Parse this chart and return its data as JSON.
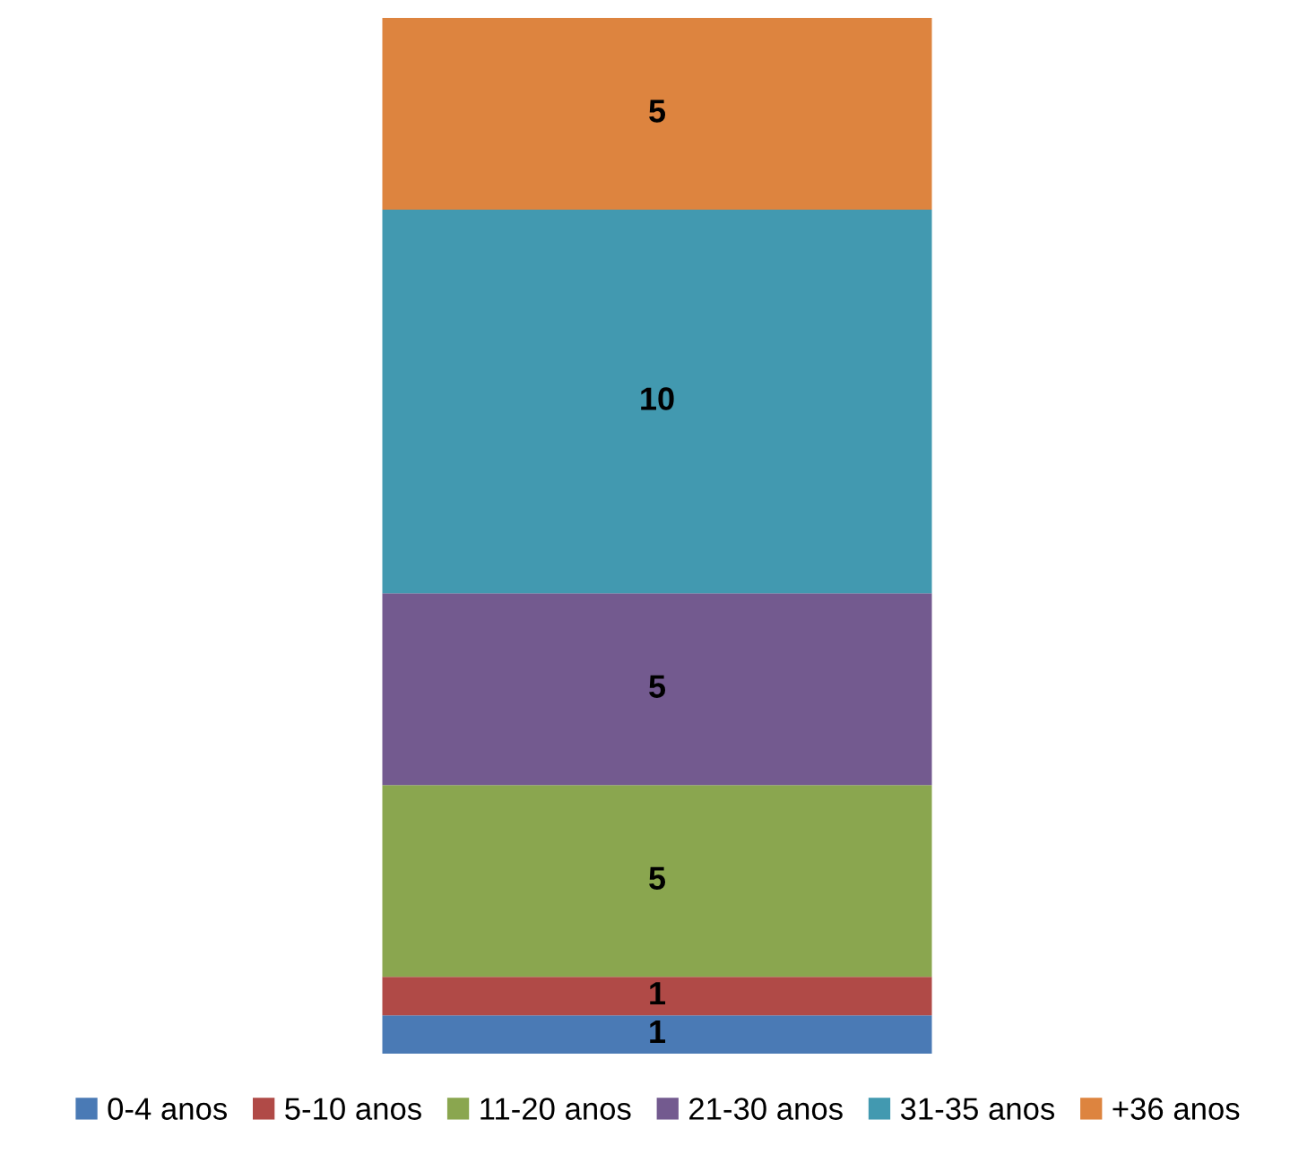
{
  "chart_data": {
    "type": "bar",
    "stacked": true,
    "categories": [
      null
    ],
    "series": [
      {
        "name": "0-4 anos",
        "color": "#4a7ab5",
        "values": [
          1
        ]
      },
      {
        "name": "5-10 anos",
        "color": "#b04a47",
        "values": [
          1
        ]
      },
      {
        "name": "11-20 anos",
        "color": "#8aa64f",
        "values": [
          5
        ]
      },
      {
        "name": "21-30 anos",
        "color": "#735a8f",
        "values": [
          5
        ]
      },
      {
        "name": "31-35 anos",
        "color": "#4299b0",
        "values": [
          10
        ]
      },
      {
        "name": "+36 anos",
        "color": "#dd843f",
        "values": [
          5
        ]
      }
    ],
    "data_labels": true,
    "legend": "bottom",
    "tick_labels": false
  }
}
